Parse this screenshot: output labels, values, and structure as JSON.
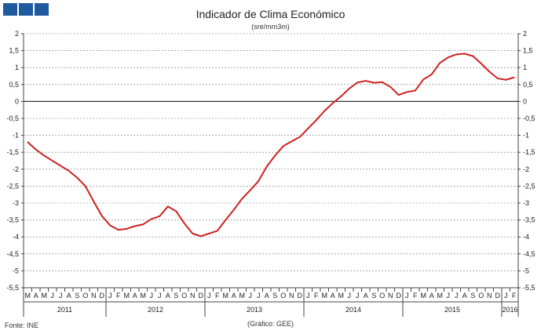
{
  "header": {
    "title": "Indicador de Clima Económico",
    "subtitle": "(sre/mm3m)"
  },
  "footer": {
    "source": "Fonte: INE",
    "credit": "(Gráfico: GEE)"
  },
  "colors": {
    "line": "#cc2222",
    "grid": "#777777",
    "logo": "#1f5a9e"
  },
  "chart_data": {
    "type": "line",
    "title": "Indicador de Clima Económico",
    "subtitle": "(sre/mm3m)",
    "ylim": [
      -5.5,
      2
    ],
    "yticks": [
      "2",
      "1,5",
      "1",
      "0,5",
      "0",
      "-0,5",
      "-1",
      "-1,5",
      "-2",
      "-2,5",
      "-3",
      "-3,5",
      "-4",
      "-4,5",
      "-5",
      "-5,5"
    ],
    "grid": "dashed horizontal",
    "month_labels": [
      "M",
      "A",
      "M",
      "J",
      "J",
      "A",
      "S",
      "O",
      "N",
      "D",
      "J",
      "F",
      "M",
      "A",
      "M",
      "J",
      "J",
      "A",
      "S",
      "O",
      "N",
      "D",
      "J",
      "F",
      "M",
      "A",
      "M",
      "J",
      "J",
      "A",
      "S",
      "O",
      "N",
      "D",
      "J",
      "F",
      "M",
      "A",
      "M",
      "J",
      "J",
      "A",
      "S",
      "O",
      "N",
      "D",
      "J",
      "F",
      "M",
      "A",
      "M",
      "J",
      "J",
      "A",
      "S",
      "O",
      "N",
      "D",
      "J",
      "F"
    ],
    "years": [
      {
        "label": "2011",
        "start": 0,
        "count": 10
      },
      {
        "label": "2012",
        "start": 10,
        "count": 12
      },
      {
        "label": "2013",
        "start": 22,
        "count": 12
      },
      {
        "label": "2014",
        "start": 34,
        "count": 12
      },
      {
        "label": "2015",
        "start": 46,
        "count": 12
      },
      {
        "label": "2016",
        "start": 58,
        "count": 2
      }
    ],
    "series": [
      {
        "values": [
          -1.2,
          -1.42,
          -1.6,
          -1.75,
          -1.9,
          -2.05,
          -2.25,
          -2.5,
          -2.95,
          -3.38,
          -3.66,
          -3.79,
          -3.76,
          -3.68,
          -3.63,
          -3.47,
          -3.39,
          -3.1,
          -3.24,
          -3.6,
          -3.9,
          -3.98,
          -3.9,
          -3.82,
          -3.5,
          -3.2,
          -2.87,
          -2.62,
          -2.35,
          -1.92,
          -1.6,
          -1.32,
          -1.18,
          -1.05,
          -0.8,
          -0.55,
          -0.28,
          -0.05,
          0.15,
          0.38,
          0.56,
          0.61,
          0.55,
          0.57,
          0.43,
          0.19,
          0.28,
          0.32,
          0.65,
          0.8,
          1.14,
          1.3,
          1.39,
          1.41,
          1.34,
          1.12,
          0.88,
          0.68,
          0.64,
          0.71
        ]
      }
    ]
  }
}
